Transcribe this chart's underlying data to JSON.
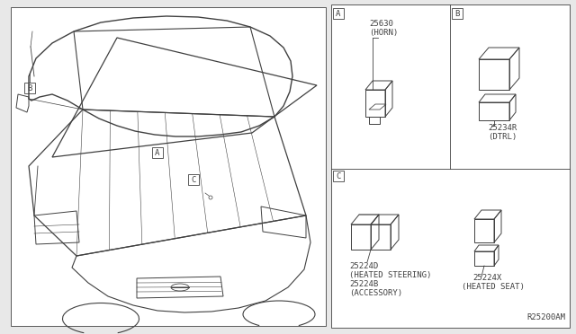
{
  "bg_color": "#e8e8e8",
  "panel_color": "#ffffff",
  "line_color": "#404040",
  "ref_code": "R25200AM",
  "part_A_num": "25630",
  "part_A_name": "(HORN)",
  "part_B_num": "25234R",
  "part_B_name": "(DTRL)",
  "part_C1_num": "25224D",
  "part_C1_name1": "(HEATED STEERING)",
  "part_C1_num2": "25224B",
  "part_C1_name2": "(ACCESSORY)",
  "part_C2_num": "25224X",
  "part_C2_name": "(HEATED SEAT)"
}
